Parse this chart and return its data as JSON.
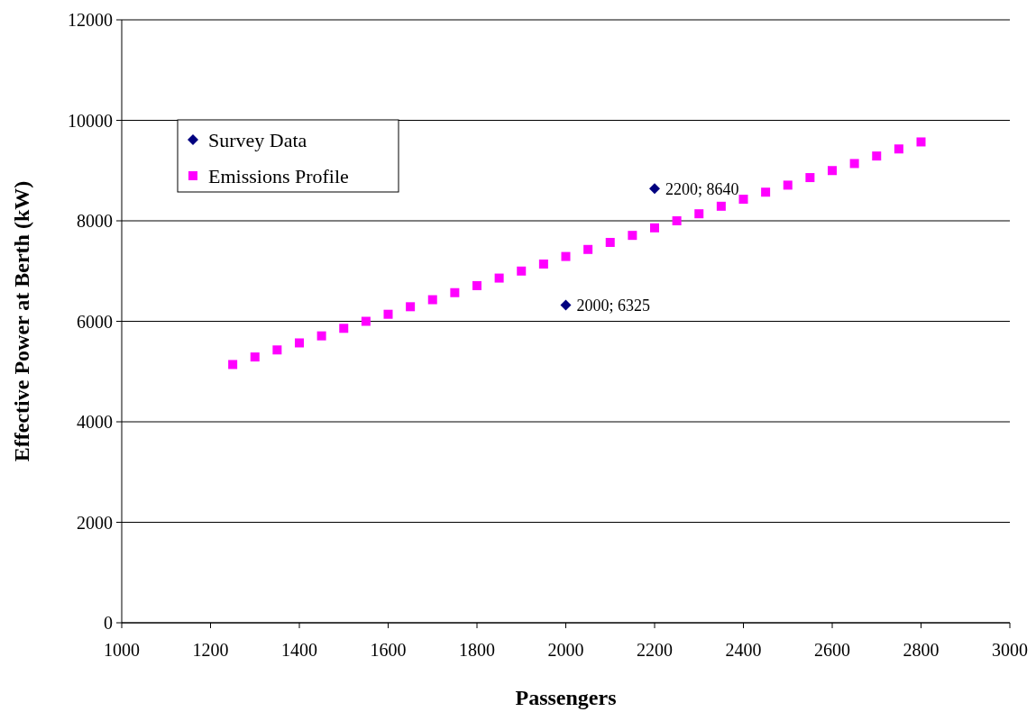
{
  "chart_data": {
    "type": "scatter",
    "xlabel": "Passengers",
    "ylabel": "Effective Power at Berth (kW)",
    "xlim": [
      1000,
      3000
    ],
    "xticks": [
      1000,
      1200,
      1400,
      1600,
      1800,
      2000,
      2200,
      2400,
      2600,
      2800,
      3000
    ],
    "ylim": [
      0,
      12000
    ],
    "yticks": [
      0,
      2000,
      4000,
      6000,
      8000,
      10000,
      12000
    ],
    "grid": "y",
    "legend": "top left",
    "series": [
      {
        "name": "Survey Data",
        "color": "#000080",
        "marker": "diamond",
        "x": [
          2000,
          2200
        ],
        "values": [
          6325,
          8640
        ],
        "value_labels": [
          "2000; 6325",
          "2200; 8640"
        ]
      },
      {
        "name": "Emissions Profile",
        "color": "#ff00ff",
        "marker": "square",
        "x": [
          1250,
          1300,
          1350,
          1400,
          1450,
          1500,
          1550,
          1600,
          1650,
          1700,
          1750,
          1800,
          1850,
          1900,
          1950,
          2000,
          2050,
          2100,
          2150,
          2200,
          2250,
          2300,
          2350,
          2400,
          2450,
          2500,
          2550,
          2600,
          2650,
          2700,
          2750,
          2800
        ],
        "values": [
          5140,
          5290,
          5430,
          5570,
          5710,
          5860,
          6000,
          6140,
          6290,
          6430,
          6570,
          6710,
          6860,
          7000,
          7140,
          7290,
          7430,
          7570,
          7710,
          7860,
          8000,
          8140,
          8290,
          8430,
          8570,
          8710,
          8860,
          9000,
          9140,
          9290,
          9430,
          9570
        ]
      }
    ]
  }
}
